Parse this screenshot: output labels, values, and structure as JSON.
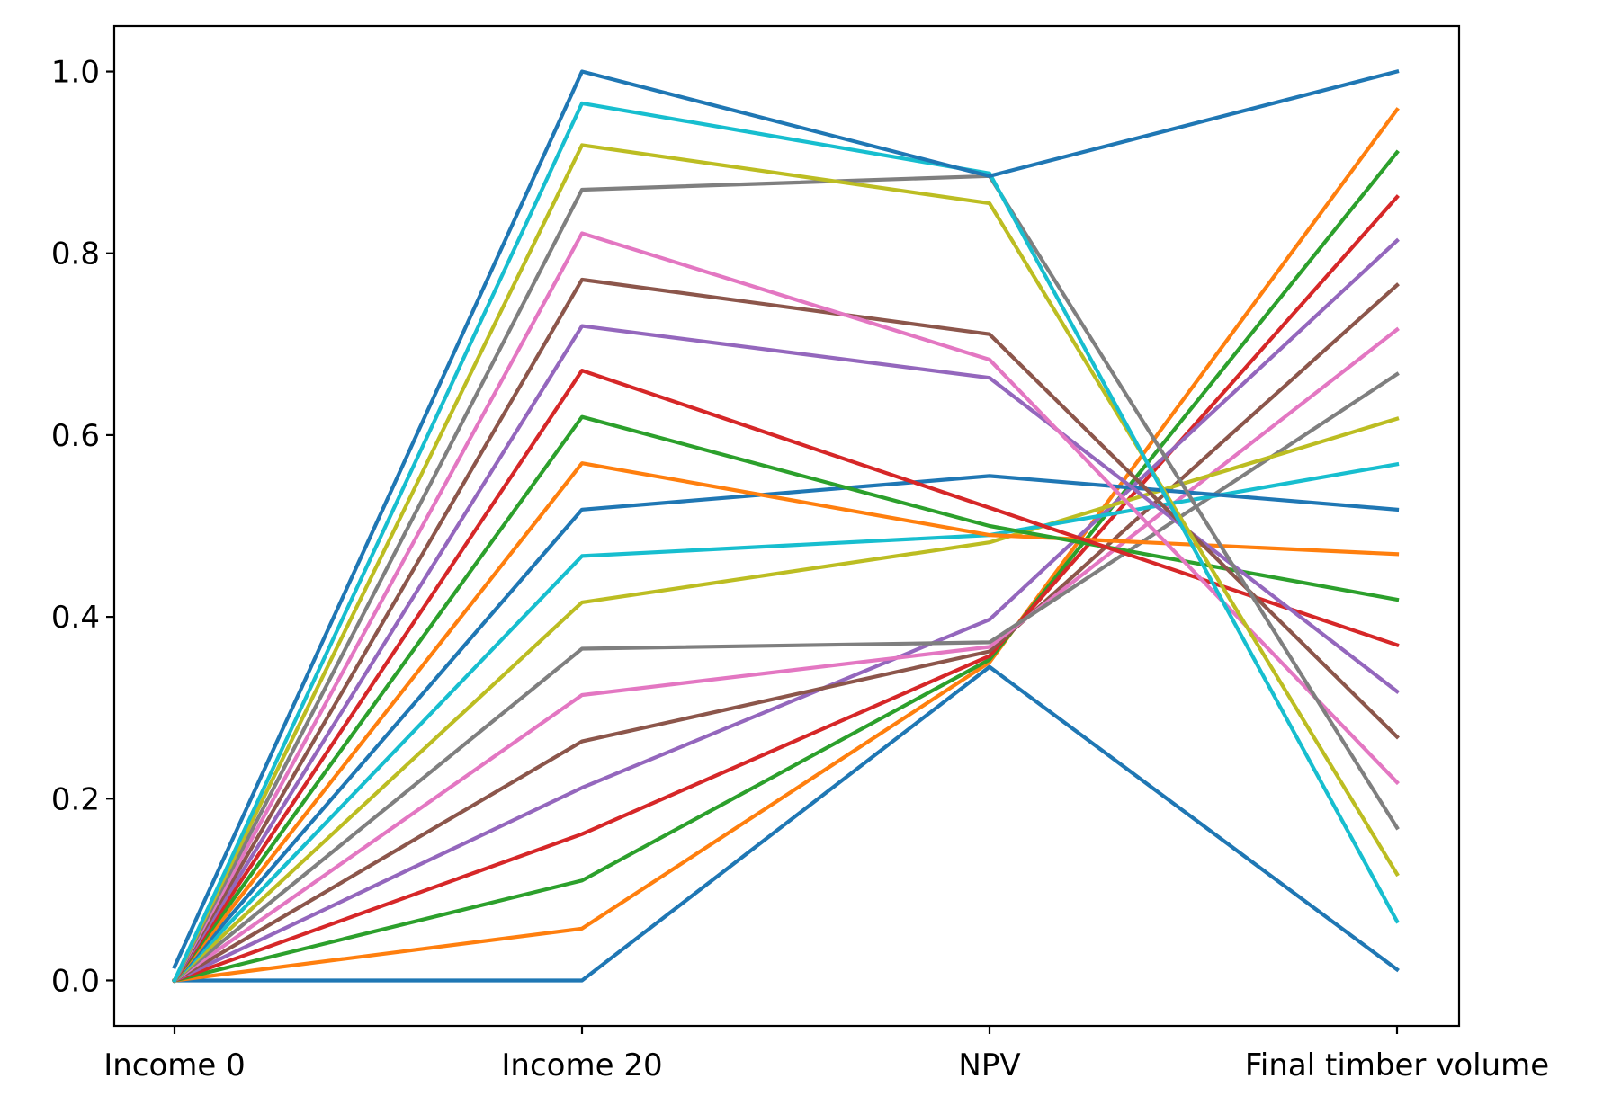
{
  "chart_data": {
    "type": "line",
    "categories": [
      "Income 0",
      "Income 20",
      "NPV",
      "Final timber volume"
    ],
    "ylim": [
      -0.05,
      1.05
    ],
    "yticks": [
      0.0,
      0.2,
      0.4,
      0.6,
      0.8,
      1.0
    ],
    "ytick_labels": [
      "0.0",
      "0.2",
      "0.4",
      "0.6",
      "0.8",
      "1.0"
    ],
    "title": "",
    "xlabel": "",
    "ylabel": "",
    "grid": false,
    "series": [
      {
        "color": "#1f77b4",
        "values": [
          0.0,
          0.0,
          0.345,
          0.012
        ]
      },
      {
        "color": "#ff7f0e",
        "values": [
          0.0,
          0.057,
          0.35,
          0.958
        ]
      },
      {
        "color": "#2ca02c",
        "values": [
          0.0,
          0.11,
          0.353,
          0.911
        ]
      },
      {
        "color": "#d62728",
        "values": [
          0.0,
          0.161,
          0.357,
          0.862
        ]
      },
      {
        "color": "#9467bd",
        "values": [
          0.0,
          0.212,
          0.397,
          0.814
        ]
      },
      {
        "color": "#8c564b",
        "values": [
          0.0,
          0.263,
          0.362,
          0.765
        ]
      },
      {
        "color": "#e377c2",
        "values": [
          0.0,
          0.314,
          0.367,
          0.716
        ]
      },
      {
        "color": "#7f7f7f",
        "values": [
          0.0,
          0.365,
          0.372,
          0.667
        ]
      },
      {
        "color": "#bcbd22",
        "values": [
          0.0,
          0.416,
          0.482,
          0.618
        ]
      },
      {
        "color": "#17becf",
        "values": [
          0.0,
          0.467,
          0.49,
          0.568
        ]
      },
      {
        "color": "#1f77b4",
        "values": [
          0.0,
          0.518,
          0.555,
          0.518
        ]
      },
      {
        "color": "#ff7f0e",
        "values": [
          0.0,
          0.569,
          0.49,
          0.469
        ]
      },
      {
        "color": "#2ca02c",
        "values": [
          0.0,
          0.62,
          0.5,
          0.419
        ]
      },
      {
        "color": "#d62728",
        "values": [
          0.0,
          0.671,
          0.52,
          0.369
        ]
      },
      {
        "color": "#9467bd",
        "values": [
          0.0,
          0.72,
          0.663,
          0.318
        ]
      },
      {
        "color": "#8c564b",
        "values": [
          0.0,
          0.771,
          0.711,
          0.268
        ]
      },
      {
        "color": "#e377c2",
        "values": [
          0.0,
          0.822,
          0.683,
          0.218
        ]
      },
      {
        "color": "#7f7f7f",
        "values": [
          0.0,
          0.87,
          0.885,
          0.168
        ]
      },
      {
        "color": "#bcbd22",
        "values": [
          0.0,
          0.919,
          0.855,
          0.117
        ]
      },
      {
        "color": "#17becf",
        "values": [
          0.0,
          0.965,
          0.888,
          0.065
        ]
      },
      {
        "color": "#1f77b4",
        "values": [
          0.015,
          1.0,
          0.885,
          1.0
        ]
      }
    ]
  }
}
